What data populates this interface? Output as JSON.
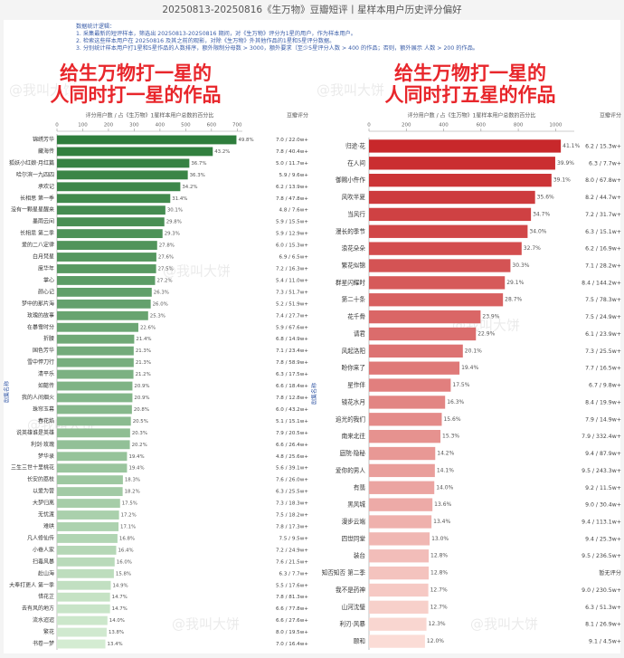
{
  "header": {
    "title": "20250813-20250816《生万物》豆瓣短评丨星样本用户历史评分偏好",
    "notes": [
      "数据统计逻辑：",
      "1. 采集最新的短评样本，筛选出 20250813-20250816 期间，对《生万物》评分为1星的用户，作为样本用户。",
      "2. 检索这些样本用户在 20250816 及其之前的观影，对除《生万物》外其他作品的1星和5星评分数据。",
      "3. 分别统计样本用户打1星和5星作品的人数排序，额外限制分母数 > 3000，额外要求（至少5星评分人数 > 400 的作品；否则，额外展示 人数 > 200 的作品。"
    ]
  },
  "watermark": "@我叫大饼",
  "chart_data": [
    {
      "type": "bar",
      "orientation": "horizontal",
      "title": "给生万物打一星的人同时打一星的作品",
      "subtitle": "评分用户数 / 占《生万物》1星样本用户总数的百分比",
      "rating_header": "豆瓣评分",
      "y_label": "剧集名称",
      "categories": [
        "锦绣芳华",
        "藏海传",
        "狐妖小红娘·月红篇",
        "哈尔滨一九四四",
        "承欢记",
        "长相思 第一季",
        "没有一颗星星醒来",
        "墨雨云间",
        "长相思 第二季",
        "爱的二八定律",
        "白月梵星",
        "度华年",
        "掌心",
        "颜心记",
        "梦中的那片海",
        "玫瑰的故事",
        "在暴雪时分",
        "折腰",
        "国色芳华",
        "雪中悍刀行",
        "清平乐",
        "如懿传",
        "我的人间烟火",
        "珠帘玉幕",
        "春花焰",
        "说英雄谁是英雄",
        "利剑·玫瑰",
        "梦华录",
        "三生三世十里桃花",
        "长安的荔枝",
        "以爱为营",
        "大梦归离",
        "无忧渡",
        "难哄",
        "凡人修仙传",
        "小巷人家",
        "扫毒风暴",
        "赴山海",
        "大奉打更人 第一季",
        "惜花芷",
        "去有风的地方",
        "流水迢迢",
        "繁花",
        "书卷一梦"
      ],
      "values": [
        697,
        605,
        514,
        508,
        479,
        440,
        421,
        417,
        410,
        389,
        386,
        385,
        381,
        368,
        364,
        354,
        316,
        300,
        298,
        298,
        297,
        293,
        293,
        291,
        287,
        284,
        283,
        272,
        272,
        256,
        255,
        245,
        241,
        239,
        235,
        230,
        224,
        221,
        209,
        206,
        206,
        196,
        193,
        188
      ],
      "percent_labels": [
        "49.8%",
        "43.2%",
        "36.7%",
        "36.3%",
        "34.2%",
        "31.4%",
        "30.1%",
        "29.8%",
        "29.3%",
        "27.8%",
        "27.6%",
        "27.5%",
        "27.2%",
        "26.3%",
        "26.0%",
        "25.3%",
        "22.6%",
        "21.4%",
        "21.3%",
        "21.3%",
        "21.2%",
        "20.9%",
        "20.9%",
        "20.8%",
        "20.5%",
        "20.3%",
        "20.2%",
        "19.4%",
        "19.4%",
        "18.3%",
        "18.2%",
        "17.5%",
        "17.2%",
        "17.1%",
        "16.8%",
        "16.4%",
        "16.0%",
        "15.8%",
        "14.9%",
        "14.7%",
        "14.7%",
        "14.0%",
        "13.8%",
        "13.4%"
      ],
      "rating_labels": [
        "7.0 / 22.0w+",
        "7.8 / 40.4w+",
        "5.0 / 11.7w+",
        "5.9 / 9.6w+",
        "6.2 / 13.9w+",
        "7.8 / 47.8w+",
        "4.8 / 7.6w+",
        "5.9 / 15.5w+",
        "5.9 / 12.9w+",
        "6.0 / 15.3w+",
        "6.9 / 6.5w+",
        "7.2 / 16.3w+",
        "5.4 / 11.0w+",
        "7.3 / 51.7w+",
        "5.2 / 51.9w+",
        "7.4 / 27.7w+",
        "5.9 / 67.6w+",
        "6.8 / 14.9w+",
        "7.1 / 23.4w+",
        "7.8 / 58.9w+",
        "6.3 / 17.5w+",
        "6.6 / 18.4w+",
        "7.8 / 12.8w+",
        "6.0 / 43.2w+",
        "5.1 / 15.1w+",
        "7.9 / 20.5w+",
        "6.6 / 26.4w+",
        "4.8 / 25.6w+",
        "5.6 / 39.1w+",
        "7.6 / 26.0w+",
        "6.3 / 25.5w+",
        "7.3 / 18.3w+",
        "7.5 / 18.2w+",
        "7.8 / 17.3w+",
        "7.5 / 9.5w+",
        "7.2 / 24.9w+",
        "7.6 / 21.5w+",
        "6.3 / 7.7w+",
        "5.5 / 17.6w+",
        "7.8 / 81.3w+",
        "6.6 / 77.8w+",
        "6.6 / 27.6w+",
        "8.0 / 19.5w+",
        "7.0 / 16.4w+"
      ],
      "xlim": [
        0,
        720
      ],
      "xticks": [
        0,
        100,
        200,
        300,
        400,
        500,
        600,
        700
      ],
      "color_scale": [
        "#2e7d3c",
        "#d4ecd2"
      ]
    },
    {
      "type": "bar",
      "orientation": "horizontal",
      "title": "给生万物打一星的人同时打五星的作品",
      "subtitle": "评分用户数 / 占《生万物》1星样本用户总数的百分比",
      "rating_header": "豆瓣评分",
      "y_label": "剧集名称",
      "categories": [
        "归途·花",
        "在人间",
        "御赐小仵作",
        "风吹半夏",
        "当风行",
        "漫长的季节",
        "浪花朵朵",
        "繁花似锦",
        "群星闪耀时",
        "第二十条",
        "花千骨",
        "请君",
        "风起洛阳",
        "盼你来了",
        "星作伴",
        "镜花水月",
        "追光的我们",
        "南来北往",
        "庭院·隐秘",
        "爱你的男人",
        "有翡",
        "黑风城",
        "漫步云端",
        "四世同堂",
        "装台",
        "知否知否 第二季",
        "我不是药神",
        "山河沈璧",
        "利刃·风暴",
        "颐和"
      ],
      "values": [
        1028,
        998,
        978,
        890,
        868,
        850,
        818,
        758,
        728,
        718,
        598,
        573,
        503,
        485,
        438,
        408,
        390,
        383,
        355,
        353,
        350,
        340,
        335,
        325,
        320,
        320,
        318,
        318,
        308,
        300
      ],
      "percent_labels": [
        "41.1%",
        "39.9%",
        "39.1%",
        "35.6%",
        "34.7%",
        "34.0%",
        "32.7%",
        "30.3%",
        "29.1%",
        "28.7%",
        "23.9%",
        "22.9%",
        "20.1%",
        "19.4%",
        "17.5%",
        "16.3%",
        "15.6%",
        "15.3%",
        "14.2%",
        "14.1%",
        "14.0%",
        "13.6%",
        "13.4%",
        "13.0%",
        "12.8%",
        "12.8%",
        "12.7%",
        "12.7%",
        "12.3%",
        "12.0%"
      ],
      "rating_labels": [
        "6.2 / 15.3w+",
        "6.3 / 7.7w+",
        "8.0 / 67.8w+",
        "8.2 / 44.7w+",
        "7.2 / 31.7w+",
        "6.3 / 15.1w+",
        "6.2 / 16.9w+",
        "7.1 / 28.2w+",
        "8.4 / 144.2w+",
        "7.5 / 78.3w+",
        "7.5 / 24.9w+",
        "6.1 / 23.9w+",
        "7.3 / 25.5w+",
        "7.7 / 16.5w+",
        "6.7 / 9.8w+",
        "8.4 / 19.9w+",
        "7.9 / 14.9w+",
        "7.9 / 332.4w+",
        "9.4 / 87.9w+",
        "9.5 / 243.3w+",
        "9.2 / 11.5w+",
        "9.0 / 30.4w+",
        "9.4 / 113.1w+",
        "9.4 / 25.3w+",
        "9.5 / 236.5w+",
        "暂无评分",
        "9.0 / 230.5w+",
        "6.3 / 51.3w+",
        "8.1 / 26.9w+",
        "9.1 / 4.5w+"
      ],
      "xlim": [
        0,
        1100
      ],
      "xticks": [
        0,
        200,
        400,
        600,
        800,
        1000
      ],
      "color_scale": [
        "#c8282b",
        "#fbdcd6"
      ]
    }
  ]
}
